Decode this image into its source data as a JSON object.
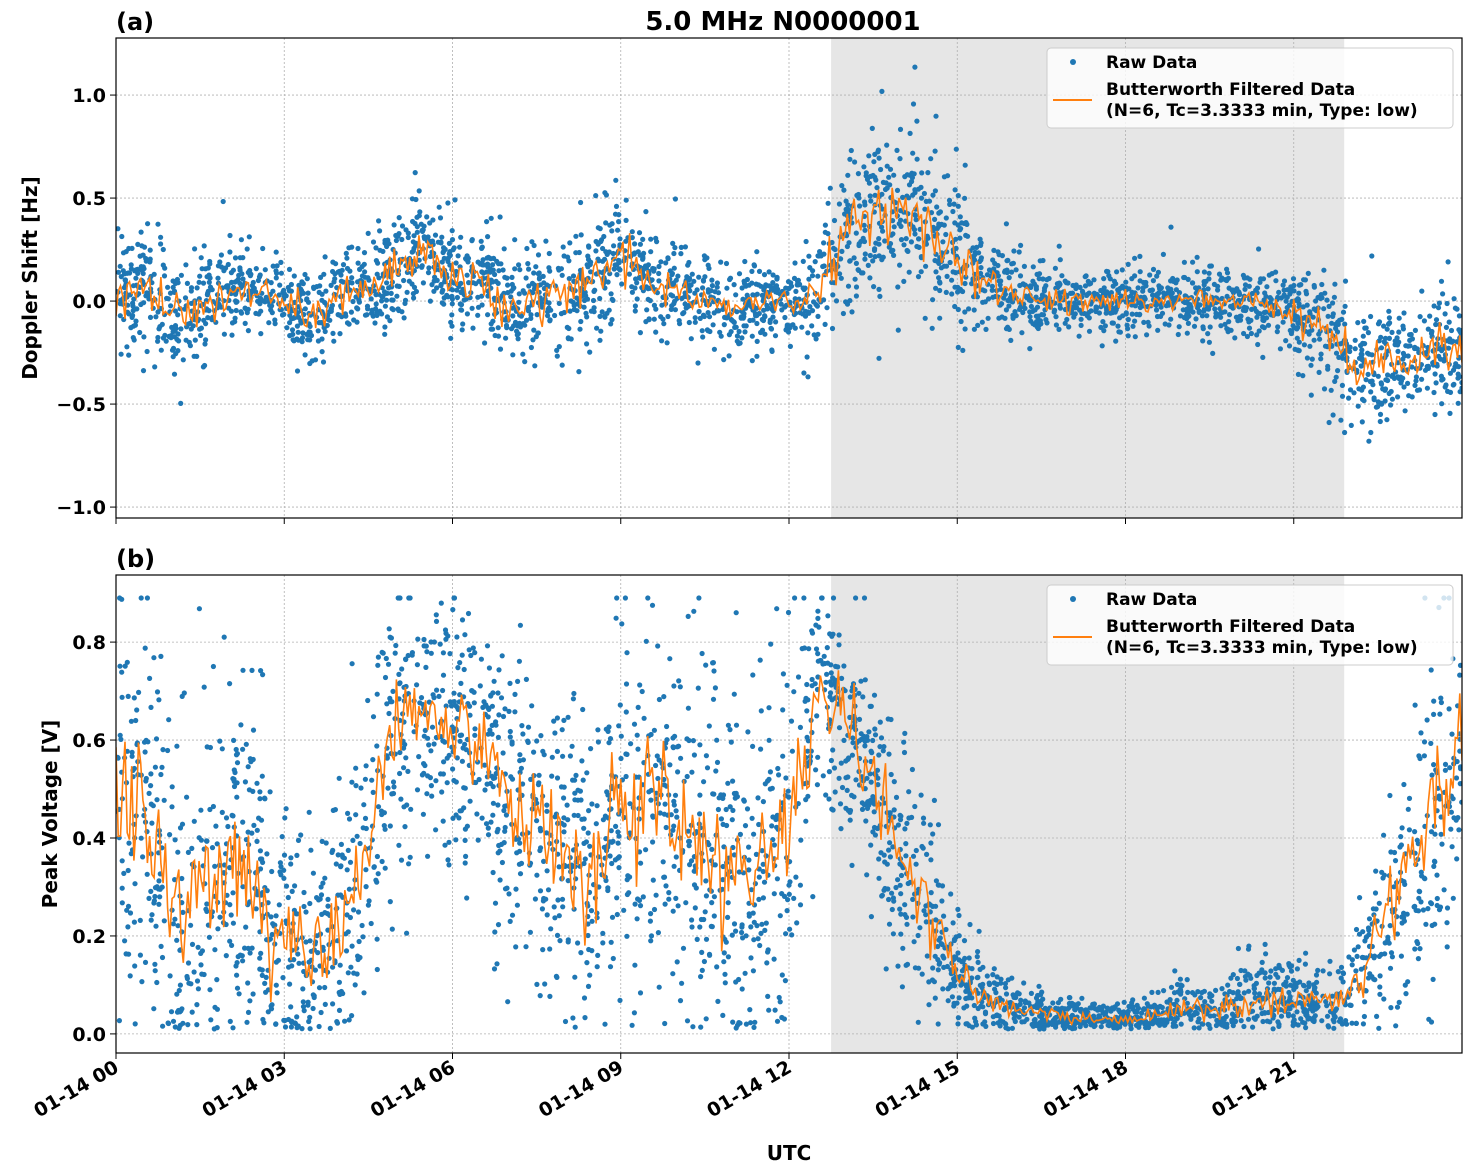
{
  "chart_data": [
    {
      "type": "scatter",
      "panel_label": "(a)",
      "title": "5.0 MHz N0000001",
      "xlabel": "",
      "ylabel": "Doppler Shift [Hz]",
      "xlim_hours": [
        0,
        24
      ],
      "ylim": [
        -1.053,
        1.277
      ],
      "yticks": [
        -1.0,
        -0.5,
        0.0,
        0.5,
        1.0
      ],
      "ytick_labels": [
        "−1.0",
        "−0.5",
        "0.0",
        "0.5",
        "1.0"
      ],
      "shaded_span_hours": [
        12.75,
        21.9
      ],
      "grid": true,
      "legend": {
        "placement": "top-right",
        "entries": [
          "Raw Data",
          "Butterworth Filtered Data",
          "(N=6, Tc=3.3333 min, Type: low)"
        ]
      },
      "series": [
        {
          "name": "Raw Data",
          "color": "#1f77b4",
          "kind": "points",
          "spread": [
            0.12,
            0.15,
            0.15,
            0.12,
            0.1,
            0.1,
            0.1,
            0.12,
            0.12,
            0.12,
            0.14,
            0.14,
            0.14,
            0.14,
            0.14,
            0.14,
            0.14,
            0.14,
            0.14,
            0.13,
            0.12,
            0.1,
            0.1,
            0.1,
            0.1,
            0.12,
            0.18,
            0.2,
            0.22,
            0.2,
            0.17,
            0.13,
            0.1,
            0.09,
            0.08,
            0.08,
            0.08,
            0.08,
            0.08,
            0.08,
            0.08,
            0.09,
            0.1,
            0.14,
            0.17,
            0.16,
            0.15,
            0.15,
            0.15
          ]
        },
        {
          "name": "Butterworth Filtered Data (N=6, Tc=3.3333 min, Type: low)",
          "color": "#ff7f0e",
          "kind": "line",
          "x_hours_step": 0.5,
          "values": [
            -0.05,
            0.1,
            -0.1,
            0.0,
            0.05,
            0.05,
            0.0,
            -0.1,
            0.05,
            0.05,
            0.15,
            0.25,
            0.1,
            0.1,
            -0.05,
            0.0,
            0.05,
            0.1,
            0.25,
            0.1,
            0.05,
            0.0,
            -0.05,
            0.0,
            -0.02,
            0.05,
            0.35,
            0.45,
            0.45,
            0.35,
            0.2,
            0.1,
            0.02,
            0.02,
            0.0,
            0.0,
            0.0,
            0.0,
            0.0,
            0.0,
            0.0,
            -0.02,
            -0.05,
            -0.1,
            -0.3,
            -0.3,
            -0.3,
            -0.25,
            -0.2
          ]
        }
      ]
    },
    {
      "type": "scatter",
      "panel_label": "(b)",
      "xlabel": "UTC",
      "ylabel": "Peak Voltage [V]",
      "xlim_hours": [
        0,
        24
      ],
      "ylim": [
        -0.039,
        0.937
      ],
      "yticks": [
        0.0,
        0.2,
        0.4,
        0.6,
        0.8
      ],
      "ytick_labels": [
        "0.0",
        "0.2",
        "0.4",
        "0.6",
        "0.8"
      ],
      "xtick_hours": [
        0,
        3,
        6,
        9,
        12,
        15,
        18,
        21
      ],
      "xtick_labels": [
        "01-14 00",
        "01-14 03",
        "01-14 06",
        "01-14 09",
        "01-14 12",
        "01-14 15",
        "01-14 18",
        "01-14 21"
      ],
      "shaded_span_hours": [
        12.75,
        21.9
      ],
      "grid": true,
      "legend": {
        "placement": "top-right",
        "entries": [
          "Raw Data",
          "Butterworth Filtered Data",
          "(N=6, Tc=3.3333 min, Type: low)"
        ]
      },
      "series": [
        {
          "name": "Raw Data",
          "color": "#1f77b4",
          "kind": "points",
          "spread": [
            0.2,
            0.2,
            0.18,
            0.18,
            0.18,
            0.18,
            0.16,
            0.12,
            0.15,
            0.18,
            0.14,
            0.13,
            0.14,
            0.14,
            0.15,
            0.15,
            0.15,
            0.15,
            0.2,
            0.2,
            0.2,
            0.2,
            0.2,
            0.2,
            0.2,
            0.12,
            0.1,
            0.12,
            0.12,
            0.1,
            0.06,
            0.04,
            0.03,
            0.025,
            0.02,
            0.02,
            0.02,
            0.025,
            0.03,
            0.035,
            0.04,
            0.04,
            0.04,
            0.04,
            0.05,
            0.1,
            0.15,
            0.18,
            0.2
          ]
        },
        {
          "name": "Butterworth Filtered Data (N=6, Tc=3.3333 min, Type: low)",
          "color": "#ff7f0e",
          "kind": "line",
          "x_hours_step": 0.5,
          "values": [
            0.5,
            0.45,
            0.25,
            0.3,
            0.35,
            0.3,
            0.2,
            0.15,
            0.25,
            0.4,
            0.65,
            0.65,
            0.6,
            0.6,
            0.5,
            0.45,
            0.35,
            0.35,
            0.45,
            0.5,
            0.45,
            0.4,
            0.35,
            0.35,
            0.4,
            0.7,
            0.65,
            0.5,
            0.35,
            0.25,
            0.12,
            0.07,
            0.05,
            0.04,
            0.03,
            0.03,
            0.03,
            0.04,
            0.05,
            0.05,
            0.06,
            0.07,
            0.07,
            0.07,
            0.08,
            0.2,
            0.35,
            0.45,
            0.55
          ]
        }
      ]
    }
  ]
}
